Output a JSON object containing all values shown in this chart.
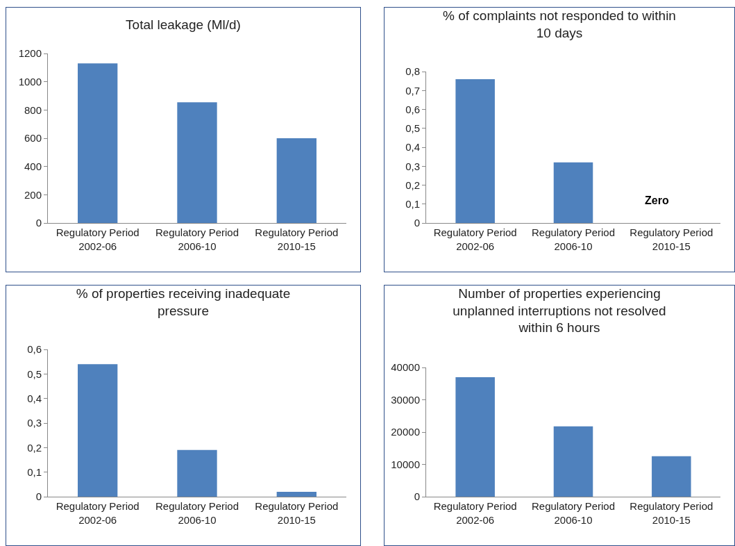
{
  "chart_data": [
    {
      "type": "bar",
      "title": "Total leakage (Ml/d)",
      "categories": [
        "Regulatory Period 2002-06",
        "Regulatory Period 2006-10",
        "Regulatory Period 2010-15"
      ],
      "values": [
        1130,
        855,
        600
      ],
      "color": "#4f81bd",
      "ylim": [
        0,
        1200
      ],
      "yticks": [
        0,
        200,
        400,
        600,
        800,
        1000,
        1200
      ],
      "grid": false
    },
    {
      "type": "bar",
      "title": "% of complaints not responded to within 10 days",
      "categories": [
        "Regulatory Period 2002-06",
        "Regulatory Period 2006-10",
        "Regulatory Period 2010-15"
      ],
      "values": [
        0.76,
        0.32,
        0
      ],
      "color": "#4f81bd",
      "ylim": [
        0,
        0.8
      ],
      "yticks": [
        {
          "value": 0,
          "label": "0"
        },
        {
          "value": 0.1,
          "label": "0,1"
        },
        {
          "value": 0.2,
          "label": "0,2"
        },
        {
          "value": 0.3,
          "label": "0,3"
        },
        {
          "value": 0.4,
          "label": "0,4"
        },
        {
          "value": 0.5,
          "label": "0,5"
        },
        {
          "value": 0.6,
          "label": "0,6"
        },
        {
          "value": 0.7,
          "label": "0,7"
        },
        {
          "value": 0.8,
          "label": "0,8"
        }
      ],
      "grid": false,
      "annotations": [
        "Zero"
      ]
    },
    {
      "type": "bar",
      "title": "% of properties receiving inadequate pressure",
      "categories": [
        "Regulatory Period 2002-06",
        "Regulatory Period 2006-10",
        "Regulatory Period 2010-15"
      ],
      "values": [
        0.54,
        0.19,
        0.02
      ],
      "color": "#4f81bd",
      "ylim": [
        0,
        0.6
      ],
      "yticks": [
        {
          "value": 0,
          "label": "0"
        },
        {
          "value": 0.1,
          "label": "0,1"
        },
        {
          "value": 0.2,
          "label": "0,2"
        },
        {
          "value": 0.3,
          "label": "0,3"
        },
        {
          "value": 0.4,
          "label": "0,4"
        },
        {
          "value": 0.5,
          "label": "0,5"
        },
        {
          "value": 0.6,
          "label": "0,6"
        }
      ],
      "grid": false
    },
    {
      "type": "bar",
      "title": "Number of properties experiencing unplanned interruptions not resolved within 6 hours",
      "categories": [
        "Regulatory Period 2002-06",
        "Regulatory Period 2006-10",
        "Regulatory Period 2010-15"
      ],
      "values": [
        37000,
        21800,
        12500
      ],
      "color": "#4f81bd",
      "ylim": [
        0,
        40000
      ],
      "yticks": [
        0,
        10000,
        20000,
        30000,
        40000
      ],
      "grid": false
    }
  ]
}
